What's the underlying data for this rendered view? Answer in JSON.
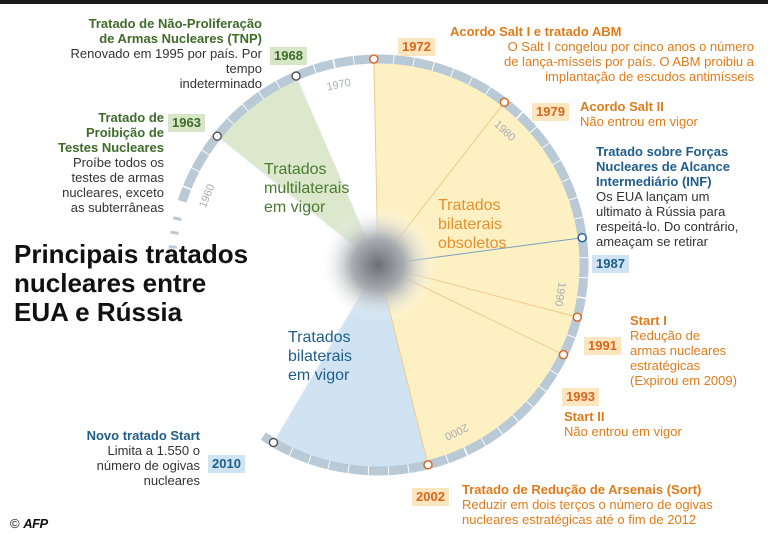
{
  "title": {
    "line1": "Principais tratados",
    "line2": "nucleares entre",
    "line3": "EUA e Rússia"
  },
  "credit": {
    "symbol": "©",
    "agency": "AFP"
  },
  "zones": {
    "multilateral": {
      "line1": "Tratados",
      "line2": "multilaterais",
      "line3": "em vigor",
      "color": "#d7e6c7"
    },
    "obsolete": {
      "line1": "Tratados",
      "line2": "bilaterais",
      "line3": "obsoletos",
      "color": "#fdf1c4"
    },
    "bilateral": {
      "line1": "Tratados",
      "line2": "bilaterais",
      "line3": "em vigor",
      "color": "#cfe3f3"
    }
  },
  "decades": [
    "1960",
    "1970",
    "1980",
    "1990",
    "2000"
  ],
  "events": {
    "tnp": {
      "year": "1968",
      "title1": "Tratado de Não-Proliferação",
      "title2": "de Armas Nucleares (TNP)",
      "desc1": "Renovado em 1995 por país. Por tempo",
      "desc2": "indeterminado"
    },
    "ptbt": {
      "year": "1963",
      "title1": "Tratado de",
      "title2": "Proibição de",
      "title3": "Testes Nucleares",
      "desc1": "Proíbe todos os",
      "desc2": "testes de armas",
      "desc3": "nucleares, exceto",
      "desc4": "as subterrâneas"
    },
    "salt1": {
      "year": "1972",
      "title1": "Acordo Salt I e tratado ABM",
      "desc1": "O Salt I congelou por cinco anos o número",
      "desc2": "de lança-mísseis por país. O ABM proibiu a",
      "desc3": "implantação de escudos antimísseis"
    },
    "salt2": {
      "year": "1979",
      "title1": "Acordo Salt II",
      "desc1": "Não entrou em vigor"
    },
    "inf": {
      "year": "1987",
      "title1": "Tratado sobre Forças",
      "title2": "Nucleares de Alcance",
      "title3": "Intermediário (INF)",
      "desc1": "Os EUA lançam um",
      "desc2": "ultimato à Rússia para",
      "desc3": "respeitá-lo. Do contrário,",
      "desc4": "ameaçam se retirar"
    },
    "start1": {
      "year": "1991",
      "title1": "Start I",
      "desc1": "Redução de",
      "desc2": "armas nucleares",
      "desc3": "estratégicas",
      "desc4": "(Expirou em 2009)"
    },
    "start2": {
      "year": "1993",
      "title1": "Start II",
      "desc1": "Não entrou em vigor"
    },
    "sort": {
      "year": "2002",
      "title1": "Tratado de Redução de Arsenais (Sort)",
      "desc1": "Reduzir em dois terços o número de ogivas",
      "desc2": "nucleares estratégicas até o fim de 2012"
    },
    "newstart": {
      "year": "2010",
      "title1": "Novo tratado Start",
      "desc1": "Limita a 1.550 o",
      "desc2": "número de ogivas",
      "desc3": "nucleares"
    }
  }
}
